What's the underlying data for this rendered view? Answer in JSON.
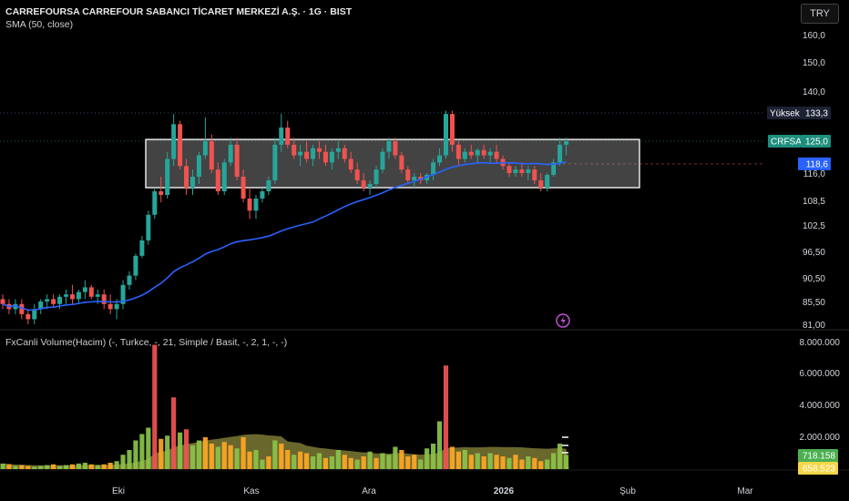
{
  "header": {
    "title": "CARREFOURSA CARREFOUR SABANCI TİCARET MERKEZİ A.Ş. · 1G · BIST",
    "indicator": "SMA (50, close)",
    "currency": "TRY"
  },
  "volume_panel": {
    "title": "FxCanli Volume(Hacim) (-, Turkce, -, 21, Simple / Basit, -, 2, 1, -, -)"
  },
  "price_axis": {
    "ticks": [
      "160,0",
      "150,0",
      "140,0",
      "116,0",
      "108,5",
      "102,5",
      "96,50",
      "90,50",
      "85,50",
      "81,00"
    ]
  },
  "volume_axis": {
    "ticks": [
      "8.000.000",
      "6.000.000",
      "4.000.000",
      "2.000.000"
    ]
  },
  "time_axis": {
    "labels": [
      "Eki",
      "Kas",
      "Ara",
      "2026",
      "Şub",
      "Mar"
    ]
  },
  "tags": {
    "high_label": "Yüksek",
    "high_value": "133,3",
    "symbol": "CRFSA",
    "last_value": "125,0",
    "sma_value": "118,6",
    "volume_value": "718.158",
    "volume_ma_value": "658.523"
  },
  "colors": {
    "up": "#26a69a",
    "down": "#ef5350",
    "sma": "#2962ff",
    "vol_green": "#8bc34a",
    "vol_orange": "#ffa726",
    "vol_red": "#f05454",
    "vol_ma_fill": "#8d8a3b"
  },
  "chart_data": {
    "type": "candlestick",
    "price_range": [
      81,
      162
    ],
    "sma_period": 50,
    "range_box": {
      "top": 125.5,
      "bottom": 112
    },
    "candles": [
      [
        86,
        87,
        84,
        85
      ],
      [
        85,
        86,
        83,
        84
      ],
      [
        84,
        86,
        83,
        85
      ],
      [
        85,
        86,
        82,
        83
      ],
      [
        83,
        84,
        81,
        82
      ],
      [
        82,
        85,
        81,
        84
      ],
      [
        84,
        86,
        83,
        85.5
      ],
      [
        85.5,
        87,
        84,
        86
      ],
      [
        86,
        87,
        84.5,
        85
      ],
      [
        85,
        87,
        84,
        86.5
      ],
      [
        86.5,
        88,
        85,
        87
      ],
      [
        87,
        89,
        85,
        86
      ],
      [
        86,
        88,
        85,
        87.5
      ],
      [
        87.5,
        90,
        86,
        88.5
      ],
      [
        88.5,
        89,
        86,
        86.5
      ],
      [
        86.5,
        88,
        85,
        87
      ],
      [
        87,
        88,
        84,
        85
      ],
      [
        85,
        87,
        83,
        84
      ],
      [
        84,
        86,
        82,
        85
      ],
      [
        85,
        90,
        84,
        89
      ],
      [
        89,
        92,
        88,
        91
      ],
      [
        91,
        96,
        90,
        95.5
      ],
      [
        95.5,
        100,
        95,
        99
      ],
      [
        99,
        106,
        98,
        105
      ],
      [
        105,
        112,
        104,
        111
      ],
      [
        111,
        115,
        108,
        110
      ],
      [
        110,
        122,
        109,
        120
      ],
      [
        120,
        133,
        118,
        130
      ],
      [
        130,
        131,
        117,
        118
      ],
      [
        118,
        120,
        110,
        112
      ],
      [
        112,
        117,
        110,
        115
      ],
      [
        115,
        122,
        113,
        121
      ],
      [
        121,
        132,
        120,
        125
      ],
      [
        125,
        127,
        116,
        117
      ],
      [
        117,
        119,
        110,
        111
      ],
      [
        111,
        120,
        110,
        119
      ],
      [
        119,
        126,
        118,
        124
      ],
      [
        124,
        126,
        114,
        115
      ],
      [
        115,
        117,
        108,
        109
      ],
      [
        109,
        112,
        104,
        106
      ],
      [
        106,
        110,
        104,
        109
      ],
      [
        109,
        112,
        108,
        111
      ],
      [
        111,
        115,
        110,
        114
      ],
      [
        114,
        126,
        113,
        124
      ],
      [
        124,
        133,
        122,
        129
      ],
      [
        129,
        131,
        123,
        124
      ],
      [
        124,
        126,
        120,
        121
      ],
      [
        121,
        124,
        118,
        122
      ],
      [
        122,
        125,
        119,
        120
      ],
      [
        120,
        124,
        118,
        123
      ],
      [
        123,
        125,
        120,
        122
      ],
      [
        122,
        124,
        118,
        119
      ],
      [
        119,
        123,
        117,
        122
      ],
      [
        122,
        125,
        120,
        123
      ],
      [
        123,
        124,
        119,
        120
      ],
      [
        120,
        122,
        116,
        117
      ],
      [
        117,
        119,
        113,
        114
      ],
      [
        114,
        116,
        111,
        112
      ],
      [
        112,
        114,
        110,
        113
      ],
      [
        113,
        118,
        112,
        117
      ],
      [
        117,
        123,
        116,
        122
      ],
      [
        122,
        126,
        120,
        125
      ],
      [
        125,
        126,
        120,
        121
      ],
      [
        121,
        122,
        116,
        117
      ],
      [
        117,
        118,
        113,
        114
      ],
      [
        114,
        116,
        112,
        115
      ],
      [
        115,
        116,
        113,
        114
      ],
      [
        114,
        116,
        113,
        115.5
      ],
      [
        115.5,
        120,
        114,
        119
      ],
      [
        119,
        123,
        118,
        121
      ],
      [
        121,
        134,
        120,
        133
      ],
      [
        133,
        134,
        122,
        124
      ],
      [
        124,
        125,
        118,
        120
      ],
      [
        120,
        123,
        119,
        122
      ],
      [
        122,
        124,
        120,
        121
      ],
      [
        121,
        123,
        119,
        122.5
      ],
      [
        122.5,
        124,
        120,
        121
      ],
      [
        121,
        123,
        119,
        122
      ],
      [
        122,
        124,
        119,
        120
      ],
      [
        120,
        121,
        117,
        118
      ],
      [
        118,
        119,
        115,
        116
      ],
      [
        116,
        118,
        115,
        117
      ],
      [
        117,
        119,
        115,
        116
      ],
      [
        116,
        118,
        114,
        117
      ],
      [
        117,
        118,
        113,
        114
      ],
      [
        114,
        116,
        111,
        112
      ],
      [
        112,
        116,
        111,
        115.5
      ],
      [
        115.5,
        120,
        115,
        119
      ],
      [
        119,
        126,
        118,
        124
      ],
      [
        124,
        126,
        121,
        125
      ]
    ],
    "volumes": [
      [
        0.35,
        "g"
      ],
      [
        0.3,
        "o"
      ],
      [
        0.2,
        "g"
      ],
      [
        0.25,
        "o"
      ],
      [
        0.2,
        "o"
      ],
      [
        0.15,
        "g"
      ],
      [
        0.2,
        "g"
      ],
      [
        0.25,
        "g"
      ],
      [
        0.3,
        "o"
      ],
      [
        0.2,
        "g"
      ],
      [
        0.25,
        "g"
      ],
      [
        0.3,
        "o"
      ],
      [
        0.35,
        "g"
      ],
      [
        0.4,
        "g"
      ],
      [
        0.3,
        "o"
      ],
      [
        0.25,
        "g"
      ],
      [
        0.3,
        "o"
      ],
      [
        0.4,
        "o"
      ],
      [
        0.5,
        "g"
      ],
      [
        0.9,
        "g"
      ],
      [
        1.2,
        "g"
      ],
      [
        1.8,
        "g"
      ],
      [
        2.2,
        "g"
      ],
      [
        2.6,
        "g"
      ],
      [
        7.8,
        "r"
      ],
      [
        1.9,
        "o"
      ],
      [
        2.1,
        "g"
      ],
      [
        4.5,
        "r"
      ],
      [
        2.3,
        "g"
      ],
      [
        2.5,
        "r"
      ],
      [
        1.5,
        "g"
      ],
      [
        1.8,
        "g"
      ],
      [
        2.0,
        "o"
      ],
      [
        1.6,
        "o"
      ],
      [
        1.4,
        "g"
      ],
      [
        1.7,
        "o"
      ],
      [
        1.5,
        "o"
      ],
      [
        1.3,
        "g"
      ],
      [
        2.0,
        "o"
      ],
      [
        1.1,
        "o"
      ],
      [
        1.2,
        "g"
      ],
      [
        0.6,
        "g"
      ],
      [
        0.8,
        "o"
      ],
      [
        1.8,
        "g"
      ],
      [
        1.6,
        "o"
      ],
      [
        1.2,
        "o"
      ],
      [
        0.9,
        "g"
      ],
      [
        1.1,
        "o"
      ],
      [
        1.0,
        "o"
      ],
      [
        0.8,
        "g"
      ],
      [
        1.0,
        "g"
      ],
      [
        0.7,
        "o"
      ],
      [
        0.8,
        "g"
      ],
      [
        1.2,
        "g"
      ],
      [
        0.9,
        "o"
      ],
      [
        0.7,
        "o"
      ],
      [
        0.6,
        "g"
      ],
      [
        0.8,
        "o"
      ],
      [
        1.1,
        "g"
      ],
      [
        0.7,
        "o"
      ],
      [
        1.0,
        "g"
      ],
      [
        0.9,
        "g"
      ],
      [
        1.4,
        "g"
      ],
      [
        1.2,
        "o"
      ],
      [
        0.8,
        "o"
      ],
      [
        0.9,
        "o"
      ],
      [
        0.6,
        "g"
      ],
      [
        1.3,
        "g"
      ],
      [
        1.6,
        "g"
      ],
      [
        3.0,
        "g"
      ],
      [
        6.5,
        "r"
      ],
      [
        1.4,
        "o"
      ],
      [
        1.1,
        "o"
      ],
      [
        1.2,
        "g"
      ],
      [
        0.9,
        "o"
      ],
      [
        1.0,
        "g"
      ],
      [
        0.8,
        "o"
      ],
      [
        1.0,
        "g"
      ],
      [
        0.9,
        "o"
      ],
      [
        0.8,
        "o"
      ],
      [
        0.7,
        "g"
      ],
      [
        0.9,
        "o"
      ],
      [
        0.6,
        "o"
      ],
      [
        0.8,
        "g"
      ],
      [
        0.7,
        "o"
      ],
      [
        0.5,
        "o"
      ],
      [
        0.6,
        "g"
      ],
      [
        1.0,
        "g"
      ],
      [
        1.6,
        "g"
      ],
      [
        0.9,
        "g"
      ]
    ]
  }
}
